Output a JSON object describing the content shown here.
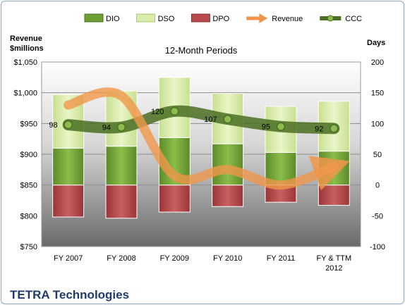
{
  "chart_data": {
    "type": "bar",
    "title": "12-Month Periods",
    "company": "TETRA Technologies",
    "left_axis_label": [
      "Revenue",
      "$millions"
    ],
    "right_axis_label": "Days",
    "categories": [
      "FY 2007",
      "FY 2008",
      "FY 2009",
      "FY 2010",
      "FY 2011",
      "FY & TTM 2012"
    ],
    "category_lines": [
      [
        "FY 2007"
      ],
      [
        "FY 2008"
      ],
      [
        "FY 2009"
      ],
      [
        "FY 2010"
      ],
      [
        "FY 2011"
      ],
      [
        "FY & TTM",
        "2012"
      ]
    ],
    "left_axis": {
      "min": 750,
      "max": 1050,
      "step": 50,
      "tick_labels": [
        "$750",
        "$800",
        "$850",
        "$900",
        "$950",
        "$1,000",
        "$1,050"
      ]
    },
    "right_axis": {
      "min": -100,
      "max": 200,
      "step": 50,
      "tick_labels": [
        "-100",
        "-50",
        "0",
        "50",
        "100",
        "150",
        "200"
      ]
    },
    "legend": [
      "DIO",
      "DSO",
      "DPO",
      "Revenue",
      "CCC"
    ],
    "legend_position": "top",
    "grid": true,
    "series": [
      {
        "name": "DIO",
        "axis": "right",
        "kind": "stacked-bar",
        "color": "#7aa83c",
        "values": [
          60,
          63,
          77,
          67,
          53,
          55
        ]
      },
      {
        "name": "DSO",
        "axis": "right",
        "kind": "stacked-bar",
        "color": "#d9ecaa",
        "values": [
          87,
          90,
          98,
          82,
          75,
          81
        ]
      },
      {
        "name": "DPO",
        "axis": "right",
        "kind": "negative-bar",
        "color": "#b84a4c",
        "values": [
          -52,
          -54,
          -44,
          -35,
          -28,
          -33
        ]
      },
      {
        "name": "Revenue",
        "axis": "left",
        "kind": "line",
        "color": "#f0964a",
        "values": [
          980,
          995,
          865,
          875,
          850,
          880
        ]
      },
      {
        "name": "CCC",
        "axis": "right",
        "kind": "line",
        "color": "#4a6e22",
        "values": [
          98,
          94,
          120,
          107,
          95,
          92
        ]
      }
    ]
  }
}
